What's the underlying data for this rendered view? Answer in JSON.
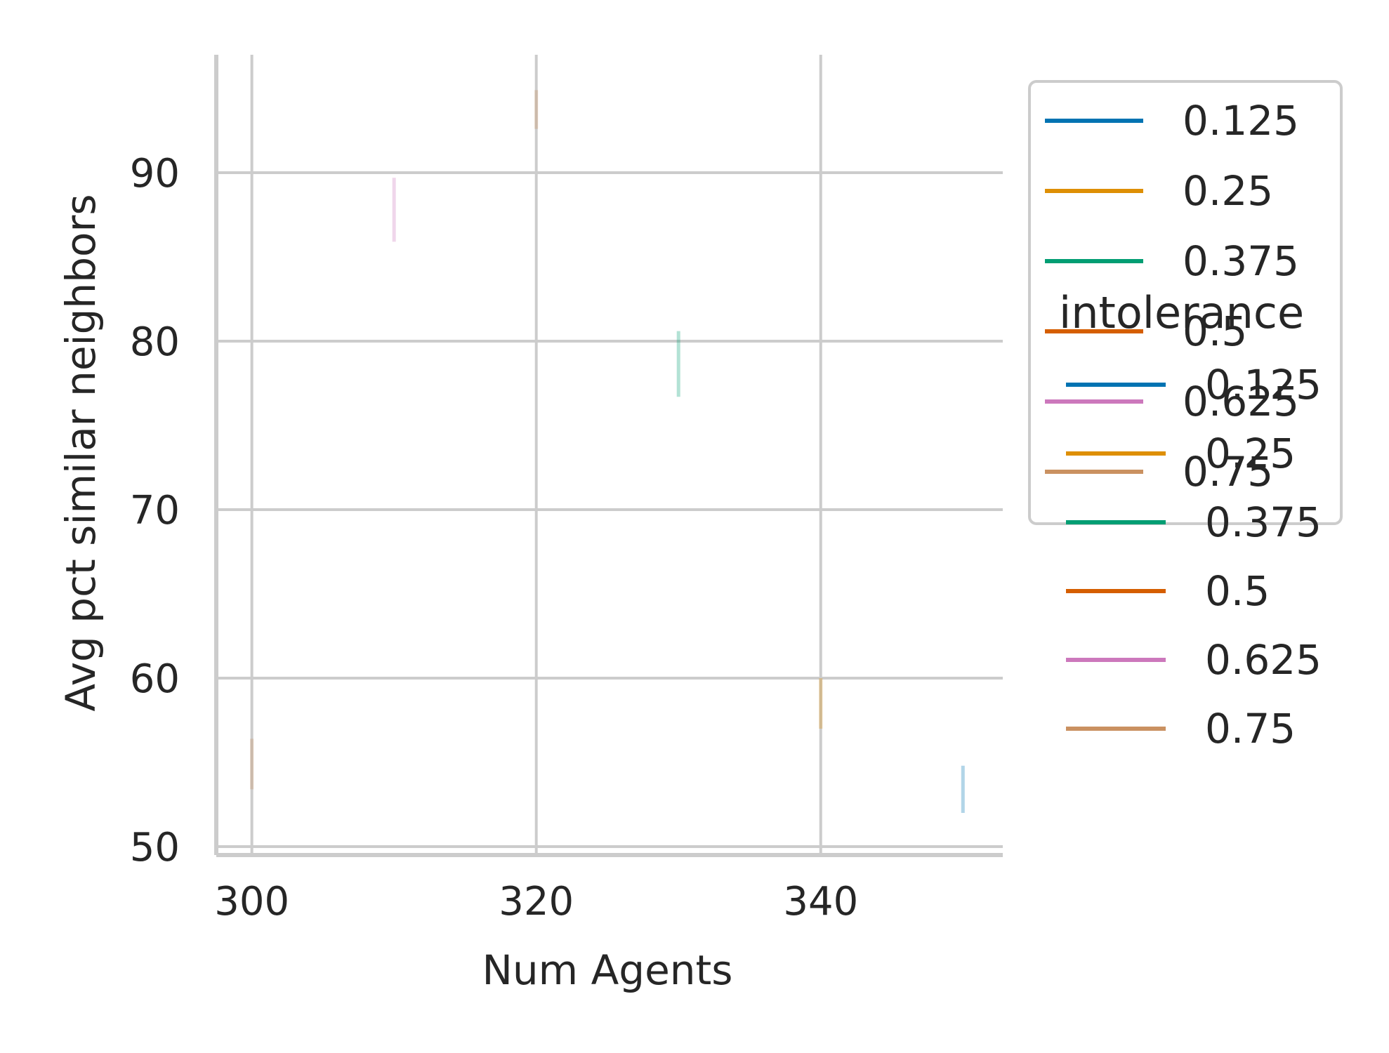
{
  "chart_data": {
    "type": "line",
    "xlabel": "Num Agents",
    "ylabel": "Avg pct similar neighbors",
    "xlim": [
      297.5,
      352.8
    ],
    "ylim": [
      49.5,
      97
    ],
    "xticks": [
      300,
      320,
      340
    ],
    "yticks": [
      50,
      60,
      70,
      80,
      90
    ],
    "grid": true,
    "legend_title": "intolerance",
    "series": [
      {
        "name": "0.125",
        "color": "#0173b2",
        "x": [
          350
        ],
        "y_low": [
          52.0
        ],
        "y_high": [
          54.8
        ]
      },
      {
        "name": "0.25",
        "color": "#de8f05",
        "x": [
          340
        ],
        "y_low": [
          57.0
        ],
        "y_high": [
          60.0
        ]
      },
      {
        "name": "0.375",
        "color": "#029e73",
        "x": [
          330
        ],
        "y_low": [
          76.7
        ],
        "y_high": [
          80.6
        ]
      },
      {
        "name": "0.5",
        "color": "#d55e00",
        "x": [],
        "y_low": [],
        "y_high": []
      },
      {
        "name": "0.625",
        "color": "#cc78bc",
        "x": [
          310
        ],
        "y_low": [
          85.9
        ],
        "y_high": [
          89.7
        ]
      },
      {
        "name": "0.75",
        "color": "#ca9161",
        "x": [
          300,
          320
        ],
        "y_low": [
          53.4,
          92.6
        ],
        "y_high": [
          56.4,
          94.9
        ]
      }
    ],
    "legends": [
      {
        "placement": "upper-right",
        "title": "",
        "framed": true,
        "entries": [
          "0.125",
          "0.25",
          "0.375",
          "0.5",
          "0.625",
          "0.75"
        ]
      },
      {
        "placement": "center-right",
        "title": "intolerance",
        "framed": false,
        "entries": [
          "0.125",
          "0.25",
          "0.375",
          "0.5",
          "0.625",
          "0.75"
        ]
      }
    ]
  }
}
